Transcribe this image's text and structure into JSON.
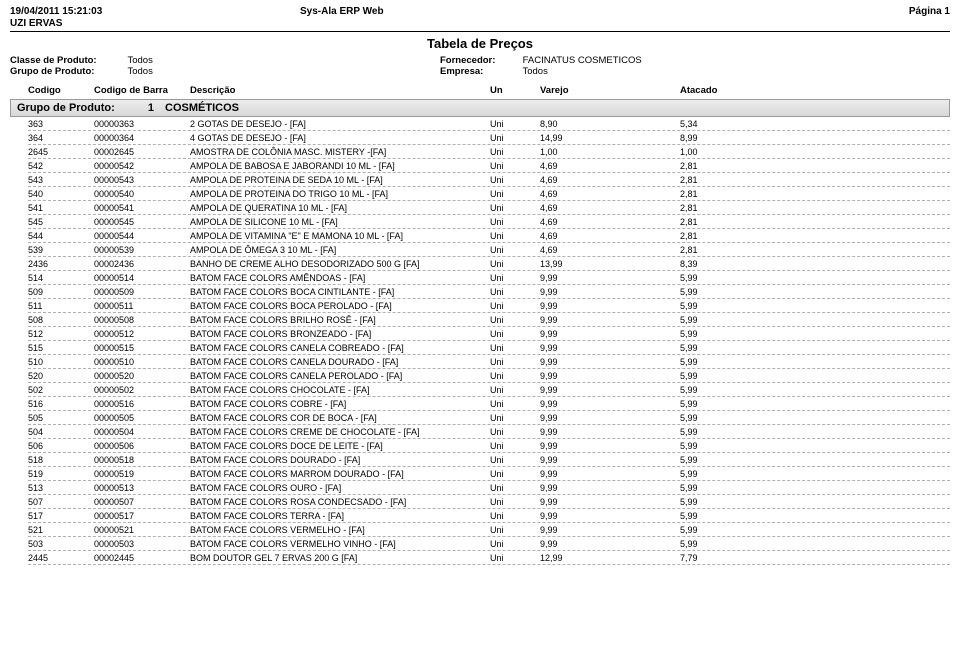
{
  "header": {
    "timestamp": "19/04/2011 15:21:03",
    "system": "Sys-Ala ERP Web",
    "page": "Página 1",
    "company": "UZI ERVAS",
    "title": "Tabela de Preços"
  },
  "meta": {
    "classe_label": "Classe de Produto:",
    "classe_value": "Todos",
    "grupo_label": "Grupo de Produto:",
    "grupo_value": "Todos",
    "fornecedor_label": "Fornecedor:",
    "fornecedor_value": "FACINATUS COSMETICOS",
    "empresa_label": "Empresa:",
    "empresa_value": "Todos"
  },
  "columns": {
    "codigo": "Codigo",
    "barra": "Codigo de Barra",
    "desc": "Descrição",
    "un": "Un",
    "varejo": "Varejo",
    "atacado": "Atacado"
  },
  "group": {
    "label": "Grupo de Produto:",
    "code": "1",
    "name": "COSMÉTICOS"
  },
  "rows": [
    {
      "codigo": "363",
      "barra": "00000363",
      "desc": "2 GOTAS DE DESEJO - [FA]",
      "un": "Uni",
      "varejo": "8,90",
      "atacado": "5,34"
    },
    {
      "codigo": "364",
      "barra": "00000364",
      "desc": "4 GOTAS DE DESEJO - [FA]",
      "un": "Uni",
      "varejo": "14,99",
      "atacado": "8,99"
    },
    {
      "codigo": "2645",
      "barra": "00002645",
      "desc": "AMOSTRA DE COLÔNIA MASC. MISTERY -[FA]",
      "un": "Uni",
      "varejo": "1,00",
      "atacado": "1,00"
    },
    {
      "codigo": "542",
      "barra": "00000542",
      "desc": "AMPOLA DE BABOSA E JABORANDI 10 ML - [FA]",
      "un": "Uni",
      "varejo": "4,69",
      "atacado": "2,81"
    },
    {
      "codigo": "543",
      "barra": "00000543",
      "desc": "AMPOLA DE PROTEINA DE SEDA 10 ML - [FA]",
      "un": "Uni",
      "varejo": "4,69",
      "atacado": "2,81"
    },
    {
      "codigo": "540",
      "barra": "00000540",
      "desc": "AMPOLA DE PROTEINA DO TRIGO 10 ML - [FA]",
      "un": "Uni",
      "varejo": "4,69",
      "atacado": "2,81"
    },
    {
      "codigo": "541",
      "barra": "00000541",
      "desc": "AMPOLA DE QUERATINA 10 ML - [FA]",
      "un": "Uni",
      "varejo": "4,69",
      "atacado": "2,81"
    },
    {
      "codigo": "545",
      "barra": "00000545",
      "desc": "AMPOLA DE SILICONE 10 ML - [FA]",
      "un": "Uni",
      "varejo": "4,69",
      "atacado": "2,81"
    },
    {
      "codigo": "544",
      "barra": "00000544",
      "desc": "AMPOLA DE VITAMINA \"E\" E MAMONA 10 ML - [FA]",
      "un": "Uni",
      "varejo": "4,69",
      "atacado": "2,81"
    },
    {
      "codigo": "539",
      "barra": "00000539",
      "desc": "AMPOLA DE ÔMEGA 3 10 ML - [FA]",
      "un": "Uni",
      "varejo": "4,69",
      "atacado": "2,81"
    },
    {
      "codigo": "2436",
      "barra": "00002436",
      "desc": "BANHO DE CREME ALHO DESODORIZADO 500 G [FA]",
      "un": "Uni",
      "varejo": "13,99",
      "atacado": "8,39"
    },
    {
      "codigo": "514",
      "barra": "00000514",
      "desc": "BATOM FACE COLORS AMÊNDOAS - [FA]",
      "un": "Uni",
      "varejo": "9,99",
      "atacado": "5,99"
    },
    {
      "codigo": "509",
      "barra": "00000509",
      "desc": "BATOM FACE COLORS BOCA CINTILANTE - [FA]",
      "un": "Uni",
      "varejo": "9,99",
      "atacado": "5,99"
    },
    {
      "codigo": "511",
      "barra": "00000511",
      "desc": "BATOM FACE COLORS BOCA PEROLADO - [FA]",
      "un": "Uni",
      "varejo": "9,99",
      "atacado": "5,99"
    },
    {
      "codigo": "508",
      "barra": "00000508",
      "desc": "BATOM FACE COLORS BRILHO ROSÊ - [FA]",
      "un": "Uni",
      "varejo": "9,99",
      "atacado": "5,99"
    },
    {
      "codigo": "512",
      "barra": "00000512",
      "desc": "BATOM FACE COLORS BRONZEADO - [FA]",
      "un": "Uni",
      "varejo": "9,99",
      "atacado": "5,99"
    },
    {
      "codigo": "515",
      "barra": "00000515",
      "desc": "BATOM FACE COLORS CANELA COBREADO - [FA]",
      "un": "Uni",
      "varejo": "9,99",
      "atacado": "5,99"
    },
    {
      "codigo": "510",
      "barra": "00000510",
      "desc": "BATOM FACE COLORS CANELA DOURADO - [FA]",
      "un": "Uni",
      "varejo": "9,99",
      "atacado": "5,99"
    },
    {
      "codigo": "520",
      "barra": "00000520",
      "desc": "BATOM FACE COLORS CANELA PEROLADO - [FA]",
      "un": "Uni",
      "varejo": "9,99",
      "atacado": "5,99"
    },
    {
      "codigo": "502",
      "barra": "00000502",
      "desc": "BATOM FACE COLORS CHOCOLATE - [FA]",
      "un": "Uni",
      "varejo": "9,99",
      "atacado": "5,99"
    },
    {
      "codigo": "516",
      "barra": "00000516",
      "desc": "BATOM FACE COLORS COBRE - [FA]",
      "un": "Uni",
      "varejo": "9,99",
      "atacado": "5,99"
    },
    {
      "codigo": "505",
      "barra": "00000505",
      "desc": "BATOM FACE COLORS COR DE BOCA - [FA]",
      "un": "Uni",
      "varejo": "9,99",
      "atacado": "5,99"
    },
    {
      "codigo": "504",
      "barra": "00000504",
      "desc": "BATOM FACE COLORS CREME DE CHOCOLATE - [FA]",
      "un": "Uni",
      "varejo": "9,99",
      "atacado": "5,99"
    },
    {
      "codigo": "506",
      "barra": "00000506",
      "desc": "BATOM FACE COLORS DOCE DE LEITE - [FA]",
      "un": "Uni",
      "varejo": "9,99",
      "atacado": "5,99"
    },
    {
      "codigo": "518",
      "barra": "00000518",
      "desc": "BATOM FACE COLORS DOURADO - [FA]",
      "un": "Uni",
      "varejo": "9,99",
      "atacado": "5,99"
    },
    {
      "codigo": "519",
      "barra": "00000519",
      "desc": "BATOM FACE COLORS MARROM DOURADO - [FA]",
      "un": "Uni",
      "varejo": "9,99",
      "atacado": "5,99"
    },
    {
      "codigo": "513",
      "barra": "00000513",
      "desc": "BATOM FACE COLORS OURO - [FA]",
      "un": "Uni",
      "varejo": "9,99",
      "atacado": "5,99"
    },
    {
      "codigo": "507",
      "barra": "00000507",
      "desc": "BATOM FACE COLORS ROSA CONDECSADO - [FA]",
      "un": "Uni",
      "varejo": "9,99",
      "atacado": "5,99"
    },
    {
      "codigo": "517",
      "barra": "00000517",
      "desc": "BATOM FACE COLORS TERRA - [FA]",
      "un": "Uni",
      "varejo": "9,99",
      "atacado": "5,99"
    },
    {
      "codigo": "521",
      "barra": "00000521",
      "desc": "BATOM FACE COLORS VERMELHO - [FA]",
      "un": "Uni",
      "varejo": "9,99",
      "atacado": "5,99"
    },
    {
      "codigo": "503",
      "barra": "00000503",
      "desc": "BATOM FACE COLORS VERMELHO VINHO - [FA]",
      "un": "Uni",
      "varejo": "9,99",
      "atacado": "5,99"
    },
    {
      "codigo": "2445",
      "barra": "00002445",
      "desc": "BOM DOUTOR GEL 7 ERVAS 200 G [FA]",
      "un": "Uni",
      "varejo": "12,99",
      "atacado": "7,79"
    }
  ]
}
